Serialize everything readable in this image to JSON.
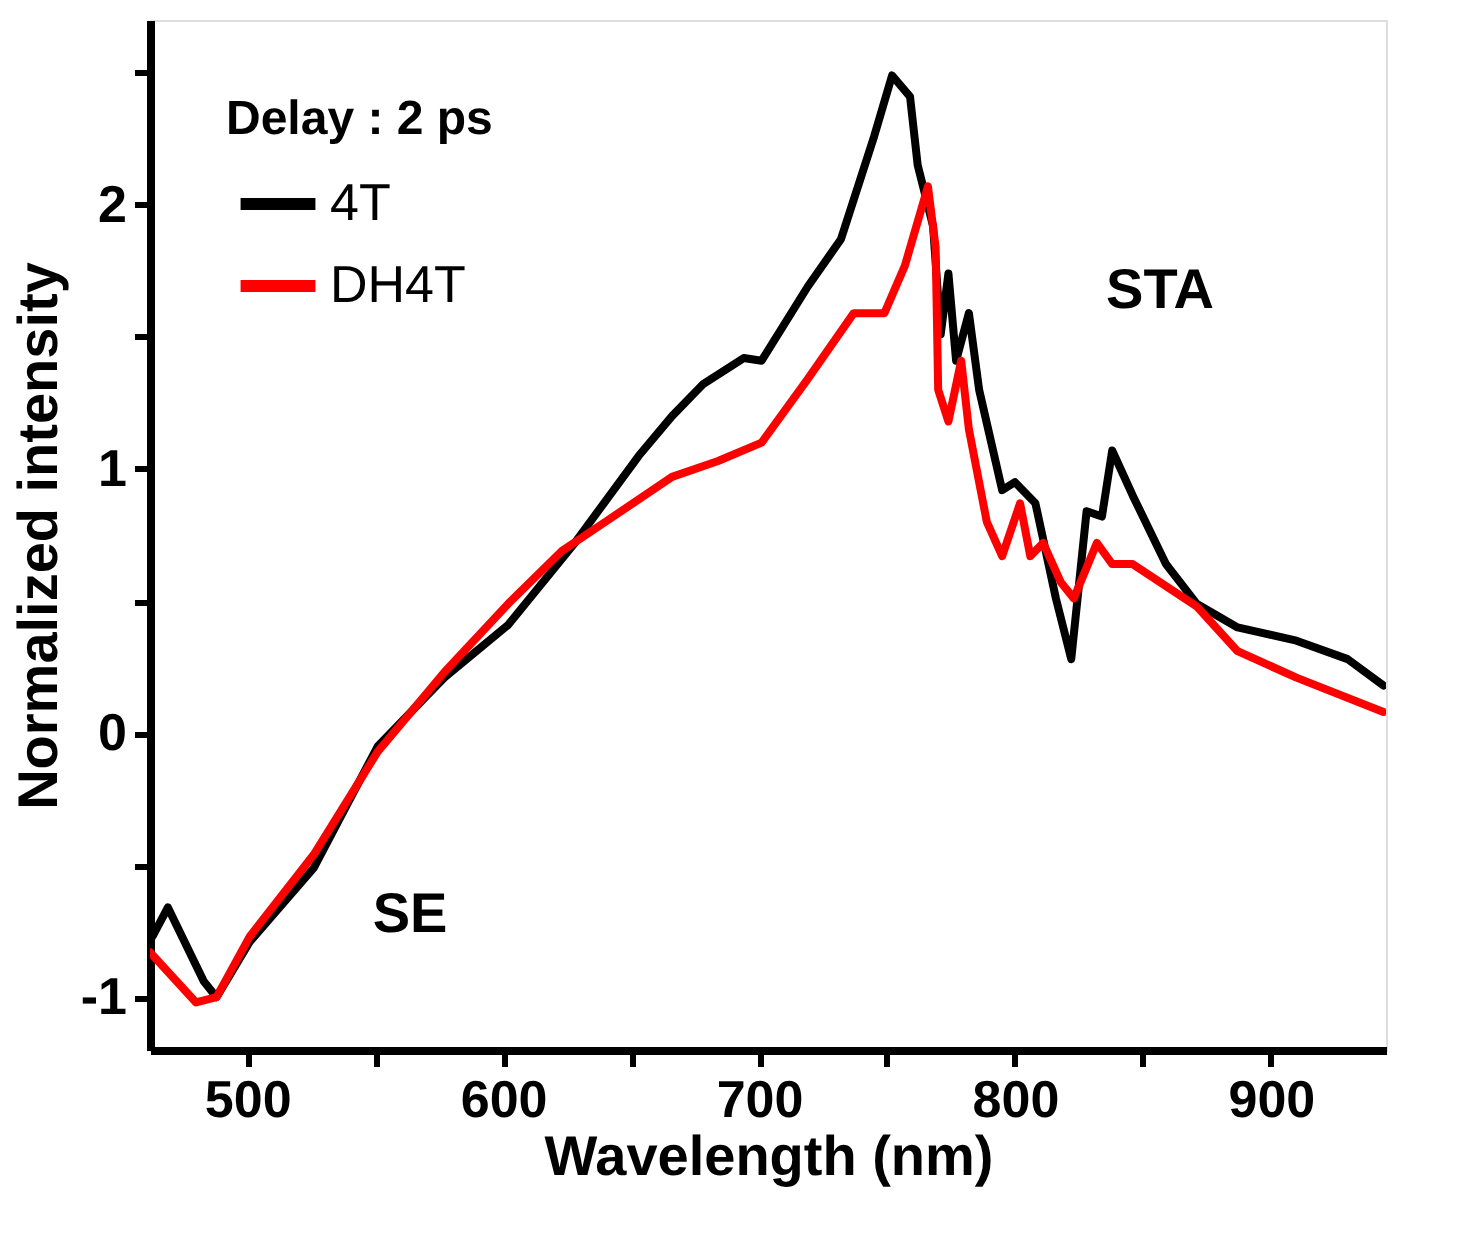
{
  "chart_data": {
    "type": "line",
    "xlabel": "Wavelength (nm)",
    "ylabel": "Normalized intensity",
    "legend_title": "Delay : 2 ps",
    "legend": "top left",
    "grid": false,
    "line_style": "solid",
    "marker": "none",
    "xlim": [
      462,
      945
    ],
    "ylim": [
      -1.2,
      2.7
    ],
    "xticks": [
      500,
      {
        "value": 550,
        "label": null
      },
      600,
      {
        "value": 650,
        "label": null
      },
      700,
      {
        "value": 750,
        "label": null
      },
      800,
      {
        "value": 850,
        "label": null
      },
      900
    ],
    "yticks": [
      {
        "value": -1,
        "label": "-1"
      },
      {
        "value": -0.5,
        "label": null
      },
      0,
      {
        "value": 0.5,
        "label": null
      },
      1,
      {
        "value": 1.5,
        "label": null
      },
      2,
      {
        "value": 2.5,
        "label": null
      }
    ],
    "annotations": [
      "SE",
      "STA"
    ],
    "series": [
      {
        "name": "4T",
        "color": "#000000",
        "x": [
          463,
          469,
          483,
          488,
          501,
          526,
          551,
          577,
          602,
          628,
          653,
          666,
          678,
          694,
          701,
          719,
          732,
          745,
          752,
          759,
          762,
          768,
          771,
          774,
          777,
          782,
          786,
          795,
          800,
          808,
          816,
          822,
          828,
          834,
          838,
          846,
          859,
          871,
          887,
          910,
          930,
          944
        ],
        "values": [
          -0.77,
          -0.66,
          -0.94,
          -1.0,
          -0.79,
          -0.51,
          -0.05,
          0.21,
          0.41,
          0.72,
          1.05,
          1.2,
          1.32,
          1.42,
          1.41,
          1.69,
          1.87,
          2.26,
          2.49,
          2.41,
          2.15,
          1.92,
          1.51,
          1.74,
          1.41,
          1.59,
          1.3,
          0.92,
          0.95,
          0.87,
          0.51,
          0.28,
          0.84,
          0.82,
          1.07,
          0.9,
          0.64,
          0.49,
          0.4,
          0.35,
          0.28,
          0.18
        ]
      },
      {
        "name": "DH4T",
        "color": "#ff0000",
        "x": [
          462,
          480,
          488,
          501,
          526,
          551,
          577,
          602,
          623,
          640,
          666,
          684,
          701,
          719,
          737,
          749,
          757,
          766,
          769,
          770,
          774,
          779,
          782,
          789,
          795,
          802,
          806,
          811,
          818,
          823,
          832,
          838,
          846,
          871,
          887,
          910,
          944
        ],
        "values": [
          -0.83,
          -1.02,
          -1.0,
          -0.77,
          -0.46,
          -0.07,
          0.23,
          0.49,
          0.69,
          0.8,
          0.97,
          1.03,
          1.1,
          1.34,
          1.59,
          1.59,
          1.77,
          2.07,
          1.84,
          1.3,
          1.18,
          1.41,
          1.15,
          0.8,
          0.67,
          0.87,
          0.67,
          0.72,
          0.57,
          0.51,
          0.72,
          0.64,
          0.64,
          0.48,
          0.31,
          0.21,
          0.08
        ]
      }
    ]
  }
}
